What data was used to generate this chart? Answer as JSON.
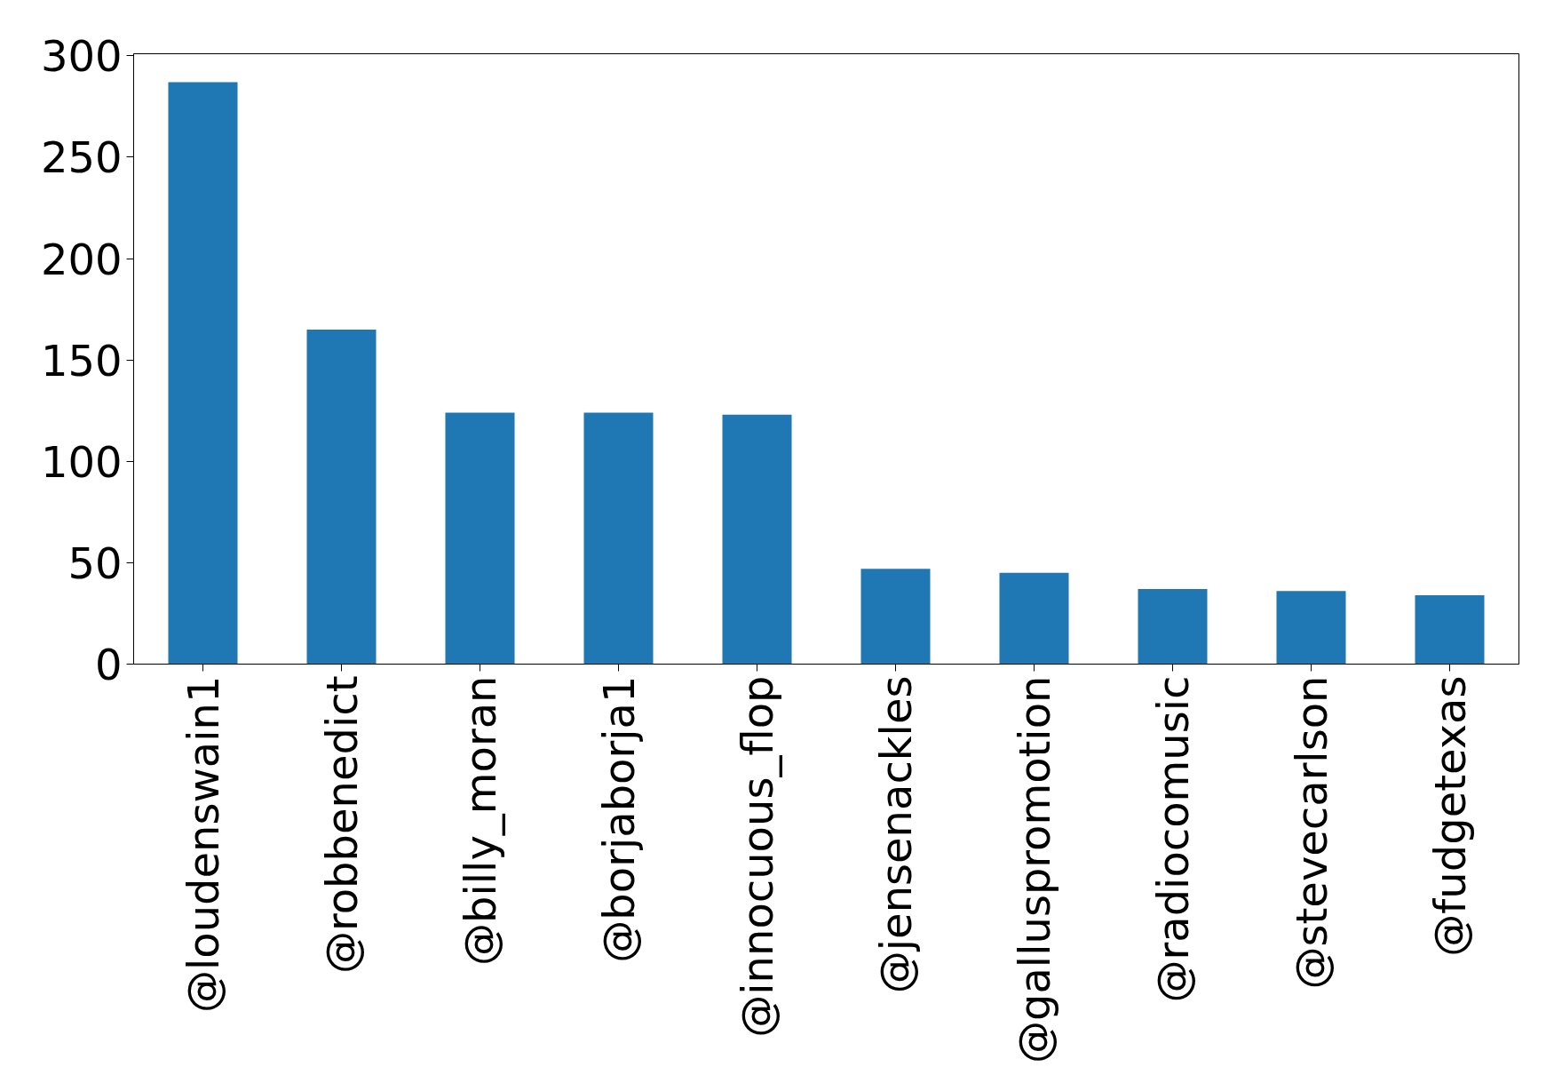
{
  "chart_data": {
    "type": "bar",
    "categories": [
      "@loudenswain1",
      "@robbenedict",
      "@billy_moran",
      "@borjaborja1",
      "@innocuous_flop",
      "@jensenackles",
      "@galluspromotion",
      "@radiocomusic",
      "@stevecarlson",
      "@fudgetexas"
    ],
    "values": [
      287,
      165,
      124,
      124,
      123,
      47,
      45,
      37,
      36,
      34
    ],
    "color": "#1f77b4",
    "ylim": [
      0,
      301
    ],
    "yticks": [
      0,
      50,
      100,
      150,
      200,
      250,
      300
    ],
    "grid": false
  }
}
